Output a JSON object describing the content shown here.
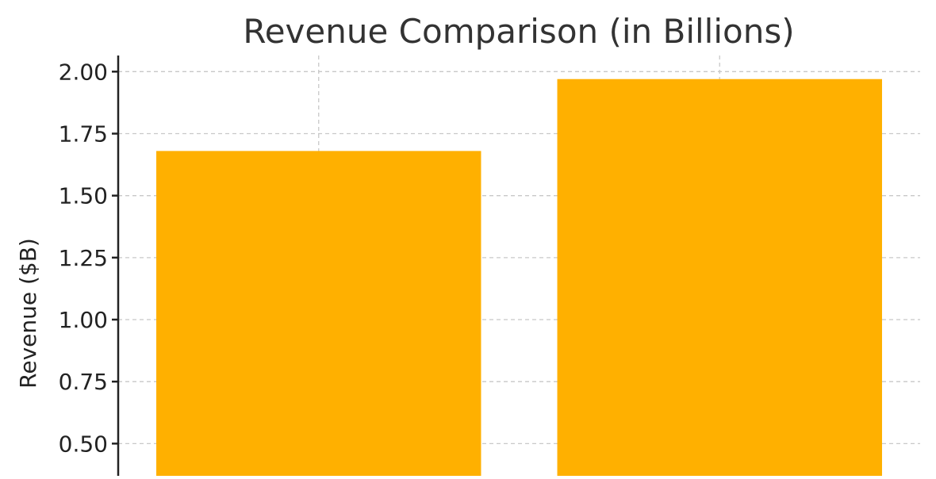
{
  "chart_data": {
    "type": "bar",
    "title": "Revenue Comparison (in Billions)",
    "xlabel": "",
    "ylabel": "Revenue ($B)",
    "categories": [
      "",
      ""
    ],
    "values": [
      1.68,
      1.97
    ],
    "ylim": [
      0.37,
      2.065
    ],
    "yticks": [
      0.5,
      0.75,
      1.0,
      1.25,
      1.5,
      1.75,
      2.0
    ],
    "ytick_labels": [
      "0.50",
      "0.75",
      "1.00",
      "1.25",
      "1.50",
      "1.75",
      "2.00"
    ],
    "grid": true,
    "bar_color": "#FFB000",
    "grid_color": "#c8c8c8"
  }
}
